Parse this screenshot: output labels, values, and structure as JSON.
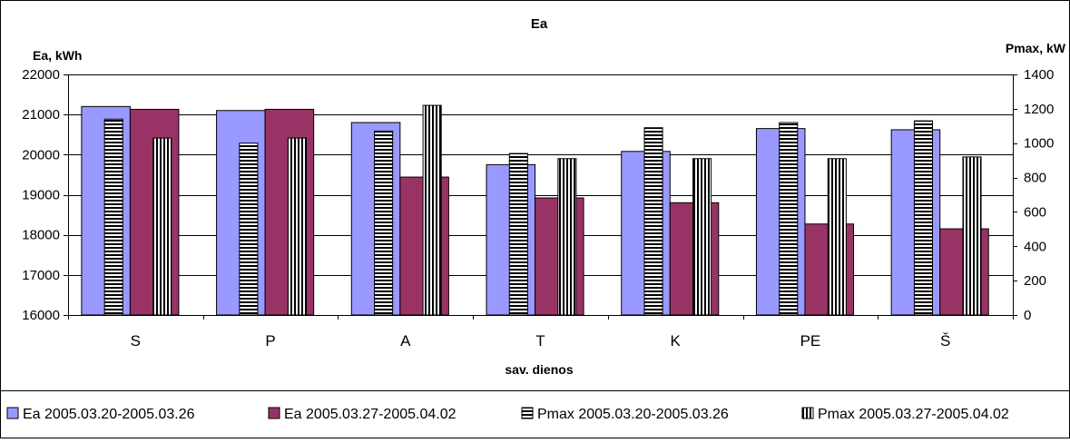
{
  "chart_data": {
    "type": "bar",
    "title": "Ea",
    "xlabel": "sav. dienos",
    "ylabel_left": "Ea, kWh",
    "ylabel_right": "Pmax, kW",
    "categories": [
      "S",
      "P",
      "A",
      "T",
      "K",
      "PE",
      "Š"
    ],
    "y_left": {
      "min": 16000,
      "max": 22000,
      "step": 1000,
      "ticks": [
        "16000",
        "17000",
        "18000",
        "19000",
        "20000",
        "21000",
        "22000"
      ]
    },
    "y_right": {
      "min": 0,
      "max": 1400,
      "step": 200,
      "ticks": [
        "0",
        "200",
        "400",
        "600",
        "800",
        "1000",
        "1200",
        "1400"
      ]
    },
    "grid": true,
    "legend_position": "bottom",
    "series": [
      {
        "name": "Ea 2005.03.20-2005.03.26",
        "axis": "left",
        "pattern": "solid",
        "color": "#9999ff",
        "values": [
          21200,
          21100,
          20800,
          19750,
          20080,
          20650,
          20620
        ]
      },
      {
        "name": "Ea 2005.03.27-2005.04.02",
        "axis": "left",
        "pattern": "solid",
        "color": "#993366",
        "values": [
          21130,
          21130,
          19440,
          18920,
          18800,
          18270,
          18150
        ]
      },
      {
        "name": "Pmax  2005.03.20-2005.03.26",
        "axis": "right",
        "pattern": "horizontal-stripes",
        "color": "#ffffff",
        "values": [
          1140,
          1000,
          1070,
          940,
          1090,
          1120,
          1130
        ]
      },
      {
        "name": "Pmax 2005.03.27-2005.04.02",
        "axis": "right",
        "pattern": "vertical-stripes",
        "color": "#ffffff",
        "values": [
          1030,
          1030,
          1220,
          910,
          910,
          910,
          920
        ]
      }
    ]
  }
}
